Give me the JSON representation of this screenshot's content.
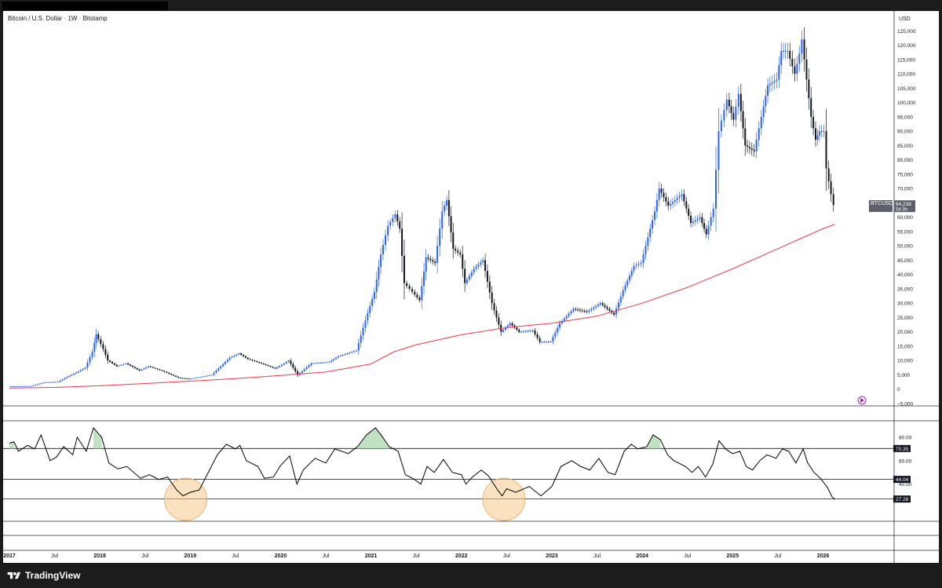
{
  "header": {
    "symbol_title": "Bitcoin / U.S. Dollar · 1W · Bitstamp",
    "currency": "USD"
  },
  "footer": {
    "brand": "TradingView"
  },
  "price_tag": {
    "symbol": "BTCUSD",
    "price": "64,238",
    "countdown": "5d 3h"
  },
  "rsi_tags": {
    "upper": "70.35",
    "middle": "44.04",
    "current": "27.28"
  },
  "colors": {
    "up": "#2962ff",
    "down": "#131722",
    "ma": "#f23645",
    "rsi_line": "#000000",
    "overbought_fill": "#a5d6a7",
    "highlight_circle": "#f6c98b"
  },
  "icons": {
    "brand": "tradingview-logo-icon",
    "replay": "replay-icon"
  },
  "chart_data": [
    {
      "type": "line",
      "title": "Bitcoin / U.S. Dollar · 1W · Bitstamp",
      "ylabel": "USD",
      "ylim": [
        -5000,
        127000
      ],
      "y_ticks": [
        -5000,
        0,
        5000,
        10000,
        15000,
        20000,
        25000,
        30000,
        35000,
        40000,
        45000,
        50000,
        55000,
        60000,
        65000,
        70000,
        75000,
        80000,
        85000,
        90000,
        95000,
        100000,
        105000,
        110000,
        115000,
        120000,
        125000
      ],
      "y_tick_labels": [
        "−5,000",
        "0",
        "5,000",
        "10,000",
        "15,000",
        "20,000",
        "25,000",
        "30,000",
        "35,000",
        "40,000",
        "45,000",
        "50,000",
        "55,000",
        "60,000",
        "65,000",
        "70,000",
        "75,000",
        "80,000",
        "85,000",
        "90,000",
        "95,000",
        "100,000",
        "105,000",
        "110,000",
        "115,000",
        "120,000",
        "125,000"
      ],
      "x_range": [
        2017.0,
        2026.43
      ],
      "x_ticks": [
        {
          "x": 2017.0,
          "label": "2017"
        },
        {
          "x": 2017.5,
          "label": "Jul"
        },
        {
          "x": 2018.0,
          "label": "2018"
        },
        {
          "x": 2018.5,
          "label": "Jul"
        },
        {
          "x": 2019.0,
          "label": "2019"
        },
        {
          "x": 2019.5,
          "label": "Jul"
        },
        {
          "x": 2020.0,
          "label": "2020"
        },
        {
          "x": 2020.5,
          "label": "Jul"
        },
        {
          "x": 2021.0,
          "label": "2021"
        },
        {
          "x": 2021.5,
          "label": "Jul"
        },
        {
          "x": 2022.0,
          "label": "2022"
        },
        {
          "x": 2022.5,
          "label": "Jul"
        },
        {
          "x": 2023.0,
          "label": "2023"
        },
        {
          "x": 2023.5,
          "label": "Jul"
        },
        {
          "x": 2024.0,
          "label": "2024"
        },
        {
          "x": 2024.5,
          "label": "Jul"
        },
        {
          "x": 2025.0,
          "label": "2025"
        },
        {
          "x": 2025.5,
          "label": "Jul"
        },
        {
          "x": 2026.0,
          "label": "2026"
        }
      ],
      "series": [
        {
          "name": "BTCUSD",
          "points": [
            [
              2017.0,
              1000
            ],
            [
              2017.25,
              1100
            ],
            [
              2017.4,
              2400
            ],
            [
              2017.55,
              2600
            ],
            [
              2017.65,
              4300
            ],
            [
              2017.75,
              5800
            ],
            [
              2017.85,
              7500
            ],
            [
              2017.93,
              13000
            ],
            [
              2017.97,
              19200
            ],
            [
              2018.05,
              14000
            ],
            [
              2018.1,
              10000
            ],
            [
              2018.2,
              8000
            ],
            [
              2018.3,
              9000
            ],
            [
              2018.45,
              6500
            ],
            [
              2018.55,
              8000
            ],
            [
              2018.7,
              6400
            ],
            [
              2018.88,
              4000
            ],
            [
              2019.0,
              3600
            ],
            [
              2019.25,
              5000
            ],
            [
              2019.45,
              11000
            ],
            [
              2019.55,
              12500
            ],
            [
              2019.65,
              10500
            ],
            [
              2019.8,
              9000
            ],
            [
              2019.95,
              7200
            ],
            [
              2020.05,
              9000
            ],
            [
              2020.1,
              10000
            ],
            [
              2020.2,
              5000
            ],
            [
              2020.35,
              9000
            ],
            [
              2020.55,
              9500
            ],
            [
              2020.65,
              11500
            ],
            [
              2020.85,
              13500
            ],
            [
              2020.95,
              24000
            ],
            [
              2021.05,
              34000
            ],
            [
              2021.12,
              47000
            ],
            [
              2021.2,
              57000
            ],
            [
              2021.28,
              61000
            ],
            [
              2021.33,
              56000
            ],
            [
              2021.38,
              37000
            ],
            [
              2021.47,
              34000
            ],
            [
              2021.55,
              31000
            ],
            [
              2021.62,
              46000
            ],
            [
              2021.72,
              44000
            ],
            [
              2021.8,
              62000
            ],
            [
              2021.85,
              66000
            ],
            [
              2021.92,
              49000
            ],
            [
              2022.0,
              47000
            ],
            [
              2022.05,
              37000
            ],
            [
              2022.15,
              42000
            ],
            [
              2022.25,
              45000
            ],
            [
              2022.35,
              30000
            ],
            [
              2022.45,
              20000
            ],
            [
              2022.55,
              23000
            ],
            [
              2022.65,
              20000
            ],
            [
              2022.8,
              20500
            ],
            [
              2022.88,
              16500
            ],
            [
              2023.0,
              16600
            ],
            [
              2023.1,
              23000
            ],
            [
              2023.25,
              28000
            ],
            [
              2023.4,
              27000
            ],
            [
              2023.55,
              30000
            ],
            [
              2023.7,
              26000
            ],
            [
              2023.8,
              34500
            ],
            [
              2023.92,
              43000
            ],
            [
              2024.0,
              44000
            ],
            [
              2024.15,
              62000
            ],
            [
              2024.2,
              70000
            ],
            [
              2024.3,
              64000
            ],
            [
              2024.45,
              68000
            ],
            [
              2024.55,
              58000
            ],
            [
              2024.65,
              60000
            ],
            [
              2024.72,
              54000
            ],
            [
              2024.8,
              63000
            ],
            [
              2024.86,
              90000
            ],
            [
              2024.95,
              101000
            ],
            [
              2025.02,
              94000
            ],
            [
              2025.08,
              103000
            ],
            [
              2025.15,
              85000
            ],
            [
              2025.25,
              83000
            ],
            [
              2025.33,
              95000
            ],
            [
              2025.4,
              106000
            ],
            [
              2025.5,
              108000
            ],
            [
              2025.55,
              118000
            ],
            [
              2025.62,
              118000
            ],
            [
              2025.7,
              110000
            ],
            [
              2025.75,
              117000
            ],
            [
              2025.78,
              122000
            ],
            [
              2025.83,
              108000
            ],
            [
              2025.88,
              95000
            ],
            [
              2025.93,
              87000
            ],
            [
              2025.97,
              90000
            ],
            [
              2026.02,
              90000
            ],
            [
              2026.05,
              77000
            ],
            [
              2026.1,
              68000
            ],
            [
              2026.13,
              64238
            ]
          ]
        },
        {
          "name": "MA",
          "points": [
            [
              2017.0,
              400
            ],
            [
              2017.5,
              600
            ],
            [
              2018.0,
              1200
            ],
            [
              2018.5,
              2000
            ],
            [
              2019.0,
              2800
            ],
            [
              2019.5,
              3700
            ],
            [
              2020.0,
              4800
            ],
            [
              2020.5,
              6000
            ],
            [
              2021.0,
              8800
            ],
            [
              2021.25,
              13000
            ],
            [
              2021.5,
              15500
            ],
            [
              2022.0,
              19000
            ],
            [
              2022.5,
              21500
            ],
            [
              2023.0,
              23000
            ],
            [
              2023.5,
              25500
            ],
            [
              2024.0,
              30000
            ],
            [
              2024.5,
              35500
            ],
            [
              2025.0,
              42000
            ],
            [
              2025.5,
              49000
            ],
            [
              2026.0,
              56000
            ],
            [
              2026.13,
              57500
            ]
          ]
        }
      ]
    },
    {
      "type": "line",
      "title": "",
      "ylim": [
        15,
        92
      ],
      "y_ticks": [
        40,
        60,
        80
      ],
      "y_tick_labels": [
        "40.00",
        "60.00",
        "80.00"
      ],
      "levels": [
        70.35,
        44.04,
        27.28
      ],
      "series": [
        {
          "name": "RSI",
          "points": [
            [
              2017.0,
              75
            ],
            [
              2017.05,
              76
            ],
            [
              2017.1,
              68
            ],
            [
              2017.2,
              73
            ],
            [
              2017.28,
              70
            ],
            [
              2017.35,
              82
            ],
            [
              2017.45,
              60
            ],
            [
              2017.52,
              63
            ],
            [
              2017.6,
              72
            ],
            [
              2017.7,
              65
            ],
            [
              2017.75,
              80
            ],
            [
              2017.85,
              68
            ],
            [
              2017.93,
              88
            ],
            [
              2018.02,
              80
            ],
            [
              2018.1,
              58
            ],
            [
              2018.2,
              53
            ],
            [
              2018.3,
              55
            ],
            [
              2018.45,
              45
            ],
            [
              2018.55,
              48
            ],
            [
              2018.65,
              44
            ],
            [
              2018.75,
              46
            ],
            [
              2018.85,
              35
            ],
            [
              2018.92,
              30
            ],
            [
              2019.0,
              33
            ],
            [
              2019.1,
              35
            ],
            [
              2019.2,
              50
            ],
            [
              2019.3,
              65
            ],
            [
              2019.4,
              74
            ],
            [
              2019.5,
              70
            ],
            [
              2019.55,
              73
            ],
            [
              2019.62,
              60
            ],
            [
              2019.75,
              55
            ],
            [
              2019.82,
              45
            ],
            [
              2019.92,
              46
            ],
            [
              2020.0,
              56
            ],
            [
              2020.1,
              64
            ],
            [
              2020.18,
              40
            ],
            [
              2020.25,
              52
            ],
            [
              2020.38,
              62
            ],
            [
              2020.5,
              58
            ],
            [
              2020.6,
              70
            ],
            [
              2020.75,
              66
            ],
            [
              2020.85,
              72
            ],
            [
              2020.95,
              82
            ],
            [
              2021.05,
              88
            ],
            [
              2021.12,
              81
            ],
            [
              2021.2,
              72
            ],
            [
              2021.3,
              68
            ],
            [
              2021.38,
              48
            ],
            [
              2021.48,
              44
            ],
            [
              2021.55,
              40
            ],
            [
              2021.62,
              55
            ],
            [
              2021.7,
              50
            ],
            [
              2021.8,
              61
            ],
            [
              2021.9,
              50
            ],
            [
              2022.0,
              48
            ],
            [
              2022.05,
              40
            ],
            [
              2022.12,
              46
            ],
            [
              2022.22,
              52
            ],
            [
              2022.3,
              47
            ],
            [
              2022.4,
              35
            ],
            [
              2022.45,
              30
            ],
            [
              2022.5,
              36
            ],
            [
              2022.6,
              33
            ],
            [
              2022.75,
              38
            ],
            [
              2022.88,
              30
            ],
            [
              2023.0,
              38
            ],
            [
              2023.1,
              55
            ],
            [
              2023.22,
              60
            ],
            [
              2023.32,
              55
            ],
            [
              2023.42,
              52
            ],
            [
              2023.52,
              62
            ],
            [
              2023.62,
              50
            ],
            [
              2023.7,
              48
            ],
            [
              2023.8,
              68
            ],
            [
              2023.88,
              74
            ],
            [
              2023.95,
              70
            ],
            [
              2024.05,
              72
            ],
            [
              2024.12,
              82
            ],
            [
              2024.2,
              78
            ],
            [
              2024.28,
              65
            ],
            [
              2024.35,
              60
            ],
            [
              2024.48,
              55
            ],
            [
              2024.55,
              50
            ],
            [
              2024.62,
              55
            ],
            [
              2024.7,
              46
            ],
            [
              2024.78,
              57
            ],
            [
              2024.85,
              77
            ],
            [
              2024.92,
              70
            ],
            [
              2025.0,
              66
            ],
            [
              2025.08,
              68
            ],
            [
              2025.15,
              55
            ],
            [
              2025.22,
              52
            ],
            [
              2025.3,
              60
            ],
            [
              2025.38,
              65
            ],
            [
              2025.48,
              62
            ],
            [
              2025.55,
              70
            ],
            [
              2025.62,
              68
            ],
            [
              2025.7,
              58
            ],
            [
              2025.78,
              70
            ],
            [
              2025.83,
              58
            ],
            [
              2025.9,
              50
            ],
            [
              2025.97,
              45
            ],
            [
              2026.02,
              40
            ],
            [
              2026.05,
              37
            ],
            [
              2026.1,
              29
            ],
            [
              2026.13,
              27.28
            ]
          ]
        }
      ]
    }
  ]
}
